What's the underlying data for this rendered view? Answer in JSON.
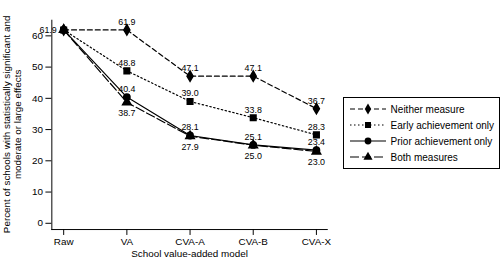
{
  "chart_data": {
    "type": "line",
    "xlabel": "School value-added model",
    "ylabel": "Percent of schools with statistically significant and moderate or large effects",
    "categories": [
      "Raw",
      "VA",
      "CVA-A",
      "CVA-B",
      "CVA-X"
    ],
    "ylim": [
      -2,
      65
    ],
    "yticks": [
      0,
      10,
      20,
      30,
      40,
      50,
      60
    ],
    "grid": false,
    "data_labels": true,
    "legend": "right",
    "series": [
      {
        "name": "Neither measure",
        "color": "#000000",
        "marker": "diamond",
        "line_style": "dashed",
        "values": [
          61.9,
          61.9,
          47.1,
          47.1,
          36.7
        ],
        "value_labels": [
          "61.9",
          "61.9",
          "47.1",
          "47.1",
          "36.7"
        ]
      },
      {
        "name": "Early achievement only",
        "color": "#000000",
        "marker": "square",
        "line_style": "dotted",
        "values": [
          61.9,
          48.8,
          39.0,
          33.8,
          28.3
        ],
        "value_labels": [
          null,
          "48.8",
          "39.0",
          "33.8",
          "28.3"
        ]
      },
      {
        "name": "Prior achievement only",
        "color": "#000000",
        "marker": "circle",
        "line_style": "solid",
        "values": [
          61.9,
          40.4,
          28.1,
          25.1,
          23.4
        ],
        "value_labels": [
          null,
          "40.4",
          "28.1",
          "25.1",
          "23.4"
        ]
      },
      {
        "name": "Both measures",
        "color": "#000000",
        "marker": "triangle",
        "line_style": "longdash",
        "values": [
          61.9,
          38.7,
          27.9,
          25.0,
          23.0
        ],
        "value_labels": [
          null,
          "38.7",
          "27.9",
          "25.0",
          "23.0"
        ]
      }
    ]
  }
}
